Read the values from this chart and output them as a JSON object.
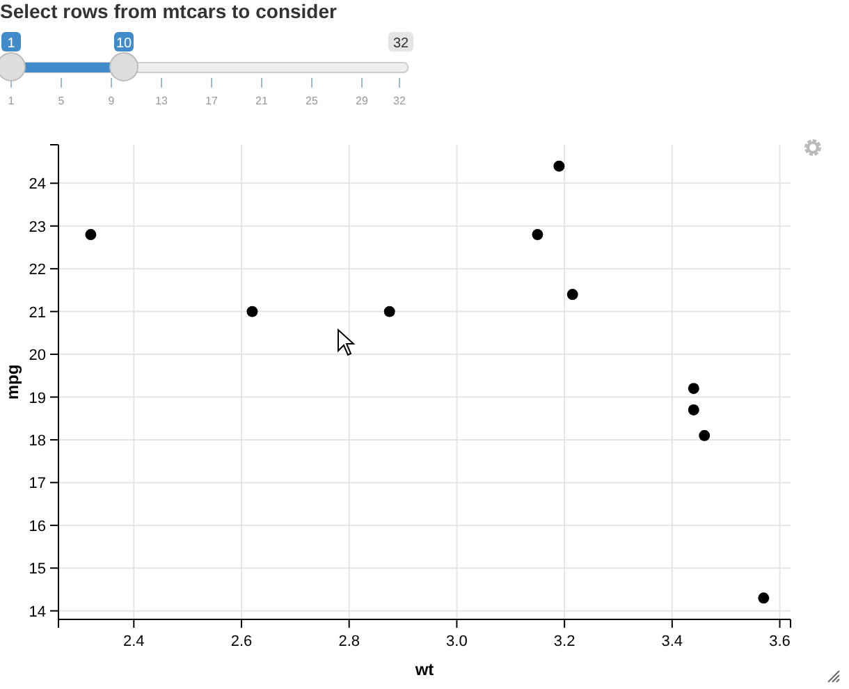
{
  "chart_data": [
    {
      "type": "other",
      "title": "Select rows from mtcars to consider",
      "values": [
        1,
        10
      ],
      "data_labels": true,
      "annotations": [
        "1",
        "5",
        "9",
        "13",
        "17",
        "21",
        "25",
        "29",
        "32"
      ]
    },
    {
      "type": "scatter",
      "xlabel": "wt",
      "ylabel": "mpg",
      "x": [
        2.62,
        2.875,
        2.32,
        3.215,
        3.44,
        3.46,
        3.57,
        3.19,
        3.15,
        3.44
      ],
      "values": [
        21.0,
        21.0,
        22.8,
        21.4,
        18.7,
        18.1,
        14.3,
        24.4,
        22.8,
        19.2
      ],
      "color": "#000000",
      "marker": "circle",
      "xlim": [
        2.26,
        3.62
      ],
      "ylim": [
        13.8,
        24.9
      ],
      "xticks": [
        {
          "value": 2.4,
          "label": "2.4"
        },
        {
          "value": 2.6,
          "label": "2.6"
        },
        {
          "value": 2.8,
          "label": "2.8"
        },
        {
          "value": 3.0,
          "label": "3.0"
        },
        {
          "value": 3.2,
          "label": "3.2"
        },
        {
          "value": 3.4,
          "label": "3.4"
        },
        {
          "value": 3.6,
          "label": "3.6"
        }
      ],
      "yticks": [
        14,
        15,
        16,
        17,
        18,
        19,
        20,
        21,
        22,
        23,
        24
      ],
      "grid": true
    }
  ]
}
